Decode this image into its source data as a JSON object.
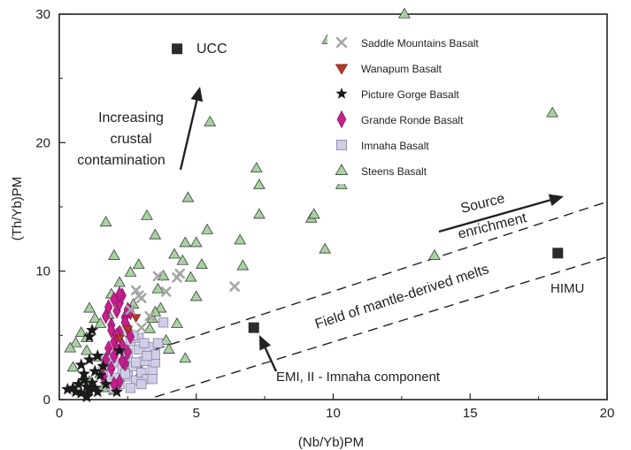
{
  "chart_data": {
    "type": "scatter",
    "title": "",
    "xlabel": "(Nb/Yb)PM",
    "ylabel": "(Th/Yb)PM",
    "xlim": [
      0,
      20
    ],
    "ylim": [
      0,
      30
    ],
    "xticks": [
      0,
      5,
      10,
      15,
      20
    ],
    "yticks": [
      0,
      10,
      20,
      30
    ],
    "grid": false,
    "legend_position": "top-right",
    "series": [
      {
        "name": "Saddle Mountains Basalt",
        "marker": "x",
        "color": "#a6a6a6",
        "x": [
          2.8,
          3.0,
          3.6,
          3.9,
          4.3,
          4.4,
          6.4,
          3.3,
          2.6,
          3.0,
          2.9
        ],
        "y": [
          8.5,
          7.9,
          9.6,
          8.4,
          9.5,
          9.8,
          8.8,
          6.5,
          7.0,
          5.6,
          8.1
        ]
      },
      {
        "name": "Wanapum Basalt",
        "marker": "triangle-down",
        "color": "#b23a2b",
        "x": [
          2.2,
          2.5,
          2.8
        ],
        "y": [
          4.8,
          5.5,
          6.4
        ]
      },
      {
        "name": "Picture Gorge Basalt",
        "marker": "star",
        "color": "#1a1a1a",
        "x": [
          0.3,
          0.5,
          0.6,
          0.7,
          0.8,
          0.9,
          1.0,
          1.0,
          1.1,
          1.1,
          1.2,
          1.2,
          1.3,
          1.4,
          1.5,
          1.6,
          1.1,
          0.9,
          1.3,
          1.7,
          2.1,
          2.2,
          1.0,
          0.8,
          1.4
        ],
        "y": [
          0.8,
          0.9,
          0.6,
          1.2,
          0.5,
          1.5,
          0.3,
          1.0,
          4.9,
          0.7,
          1.3,
          5.4,
          2.2,
          0.6,
          1.9,
          2.6,
          3.1,
          2.0,
          0.9,
          1.2,
          0.6,
          3.8,
          0.2,
          2.7,
          3.4
        ]
      },
      {
        "name": "Grande Ronde Basalt",
        "marker": "diamond",
        "color": "#c4208c",
        "x": [
          1.7,
          1.8,
          1.9,
          2.0,
          2.0,
          2.1,
          2.1,
          2.2,
          2.2,
          2.3,
          2.3,
          2.4,
          2.4,
          2.5,
          2.5,
          2.6,
          1.9,
          2.0,
          2.2,
          2.4,
          1.8,
          2.1,
          2.3,
          2.6,
          1.6,
          2.0,
          2.5,
          1.7,
          2.2,
          1.9
        ],
        "y": [
          6.5,
          7.2,
          5.8,
          7.8,
          4.5,
          6.9,
          3.9,
          7.5,
          5.2,
          8.1,
          4.2,
          6.4,
          2.8,
          7.0,
          5.6,
          4.9,
          2.4,
          3.4,
          1.4,
          6.0,
          4.0,
          5.0,
          3.0,
          6.8,
          1.8,
          1.2,
          3.7,
          3.1,
          8.2,
          5.4
        ]
      },
      {
        "name": "Imnaha Basalt",
        "marker": "square",
        "color": "#d0cde6",
        "x": [
          1.6,
          1.8,
          2.0,
          2.1,
          2.2,
          2.3,
          2.4,
          2.5,
          2.6,
          2.7,
          2.8,
          2.9,
          3.0,
          3.1,
          3.2,
          3.3,
          3.4,
          3.5,
          2.0,
          2.5,
          3.0,
          3.5,
          1.9,
          2.4,
          2.9,
          3.4,
          2.2,
          2.7,
          3.2,
          2.6,
          3.1,
          2.3,
          3.6,
          3.8,
          2.8,
          1.7
        ],
        "y": [
          2.2,
          1.5,
          2.9,
          1.7,
          4.2,
          2.4,
          3.3,
          1.8,
          4.5,
          2.6,
          1.5,
          3.9,
          2.1,
          3.0,
          1.6,
          4.1,
          2.3,
          2.9,
          0.9,
          3.6,
          1.2,
          3.5,
          3.3,
          2.0,
          4.8,
          1.6,
          1.2,
          5.0,
          3.4,
          0.9,
          4.4,
          5.3,
          4.4,
          6.0,
          2.9,
          3.2
        ]
      },
      {
        "name": "Steens Basalt",
        "marker": "triangle",
        "color": "#a7d3a1",
        "x": [
          12.6,
          9.8,
          18.0,
          5.5,
          7.2,
          7.3,
          7.3,
          10.3,
          9.2,
          9.3,
          9.7,
          13.7,
          6.6,
          6.7,
          5.4,
          5.0,
          5.2,
          4.7,
          4.6,
          4.5,
          4.8,
          3.2,
          3.5,
          3.6,
          2.9,
          1.7,
          2.0,
          2.6,
          4.2,
          3.8,
          1.1,
          1.3,
          1.5,
          0.8,
          0.6,
          1.0,
          1.4,
          1.8,
          2.4,
          3.0,
          3.9,
          4.6,
          0.5,
          0.9,
          1.2,
          1.6,
          2.0,
          0.7,
          1.1,
          1.5,
          3.4,
          3.7,
          5.0,
          2.7,
          2.2,
          1.9,
          3.3,
          4.0,
          0.4,
          1.0,
          1.8,
          2.6,
          3.5,
          4.3
        ],
        "y": [
          30.0,
          28.0,
          22.3,
          21.6,
          18.0,
          16.7,
          14.4,
          16.7,
          14.1,
          14.4,
          11.7,
          11.2,
          12.4,
          10.4,
          13.2,
          12.2,
          10.5,
          15.7,
          12.2,
          10.8,
          9.5,
          14.3,
          12.8,
          8.6,
          10.5,
          13.8,
          11.2,
          9.9,
          11.3,
          9.6,
          7.1,
          6.3,
          5.9,
          5.2,
          4.4,
          3.8,
          3.3,
          2.9,
          2.6,
          2.2,
          4.6,
          3.2,
          2.5,
          1.6,
          1.2,
          0.9,
          0.7,
          0.8,
          1.4,
          2.0,
          6.3,
          7.1,
          8.0,
          7.4,
          9.1,
          8.2,
          5.5,
          3.9,
          4.0,
          4.8,
          6.6,
          5.2,
          6.8,
          5.9
        ]
      }
    ],
    "reference_points": [
      {
        "label": "UCC",
        "x": 4.3,
        "y": 27.3
      },
      {
        "label": "HIMU",
        "x": 18.2,
        "y": 11.4
      },
      {
        "label": "",
        "x": 7.1,
        "y": 5.6
      }
    ],
    "annotations": {
      "increasing": "Increasing",
      "crustal": "crustal",
      "contamination": "contamination",
      "source": "Source",
      "enrichment": "enrichment",
      "field": "Field of mantle-derived melts",
      "emi": "EMI, II - Imnaha component"
    }
  }
}
